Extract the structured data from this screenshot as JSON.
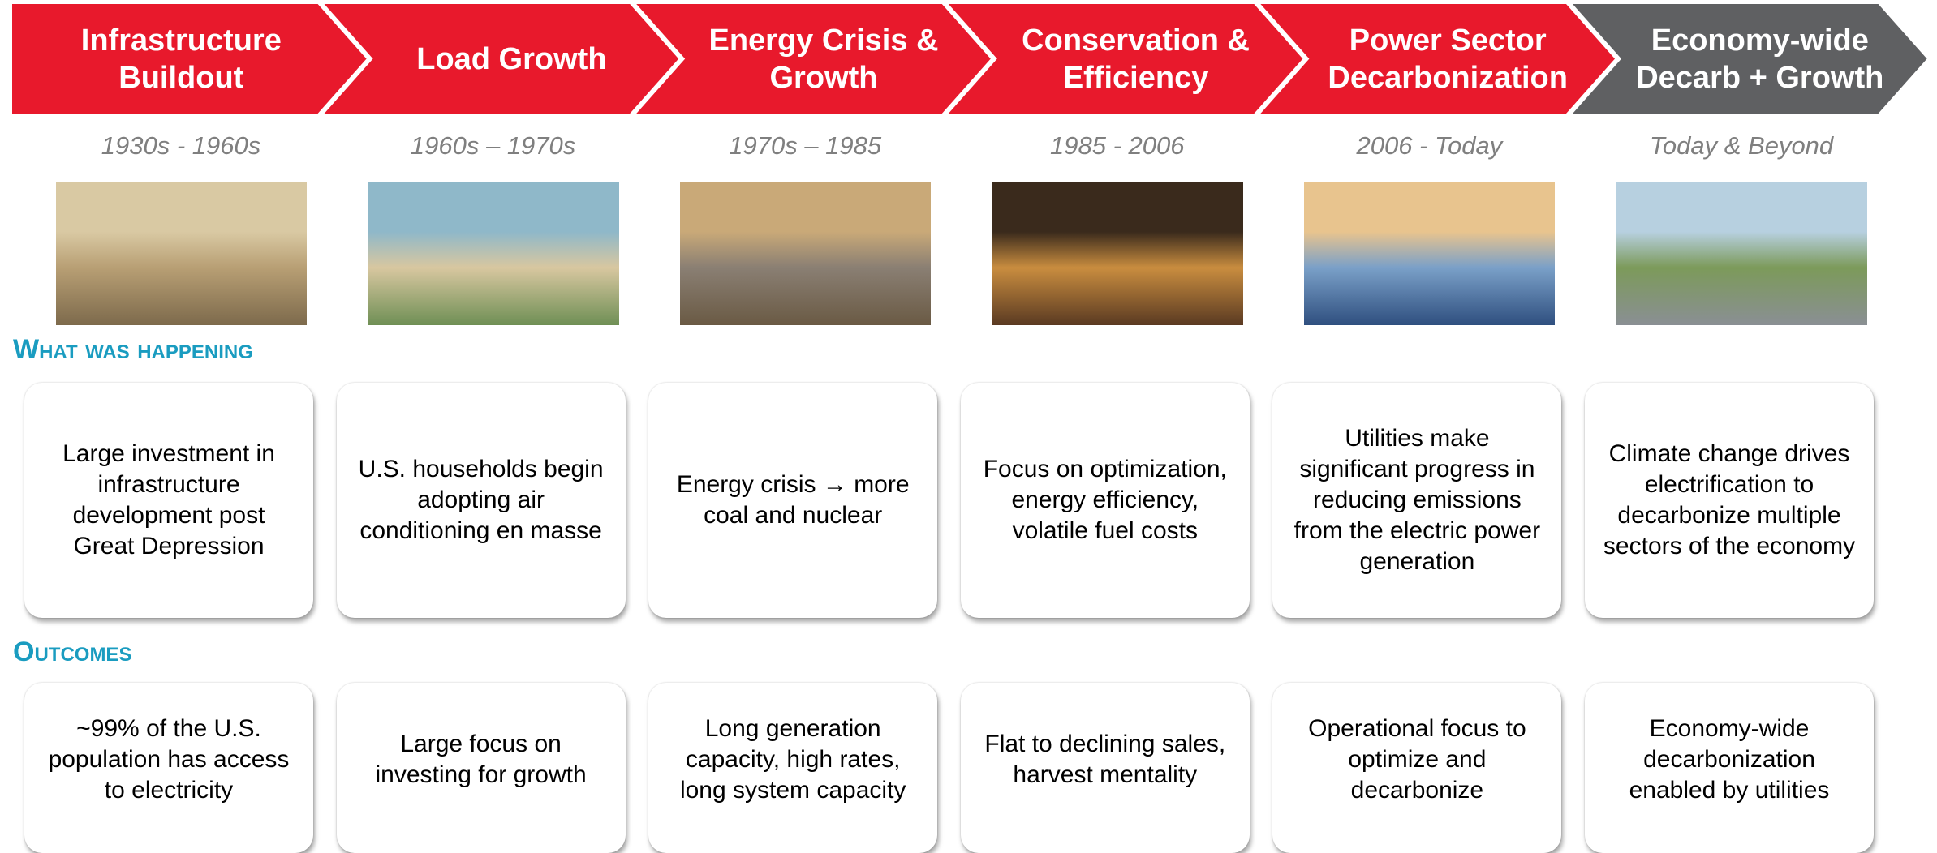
{
  "sections": {
    "happening": "What was happening",
    "outcomes": "Outcomes"
  },
  "phases": [
    {
      "title": "Infrastructure Buildout",
      "period": "1930s - 1960s",
      "happening": "Large investment in infrastructure development post Great Depression",
      "outcome": "~99% of the U.S. population has access to electricity"
    },
    {
      "title": "Load Growth",
      "period": "1960s – 1970s",
      "happening": "U.S. households begin adopting air conditioning en masse",
      "outcome": "Large focus on investing for growth"
    },
    {
      "title": "Energy Crisis & Growth",
      "period": "1970s – 1985",
      "happening": "Energy crisis → more coal and nuclear",
      "outcome": "Long generation capacity, high rates, long system capacity"
    },
    {
      "title": "Conservation & Efficiency",
      "period": "1985 - 2006",
      "happening": "Focus on optimization, energy efficiency, volatile fuel costs",
      "outcome": "Flat to declining sales, harvest mentality"
    },
    {
      "title": "Power Sector Decarbonization",
      "period": "2006 - Today",
      "happening": "Utilities make significant progress in reducing emissions from the electric power generation",
      "outcome": "Operational focus to optimize and decarbonize"
    },
    {
      "title": "Economy-wide Decarb + Growth",
      "period": "Today & Beyond",
      "happening": "Climate change drives electrification to decarbonize multiple sectors of the economy",
      "outcome": "Economy-wide decarbonization enabled by utilities"
    }
  ]
}
